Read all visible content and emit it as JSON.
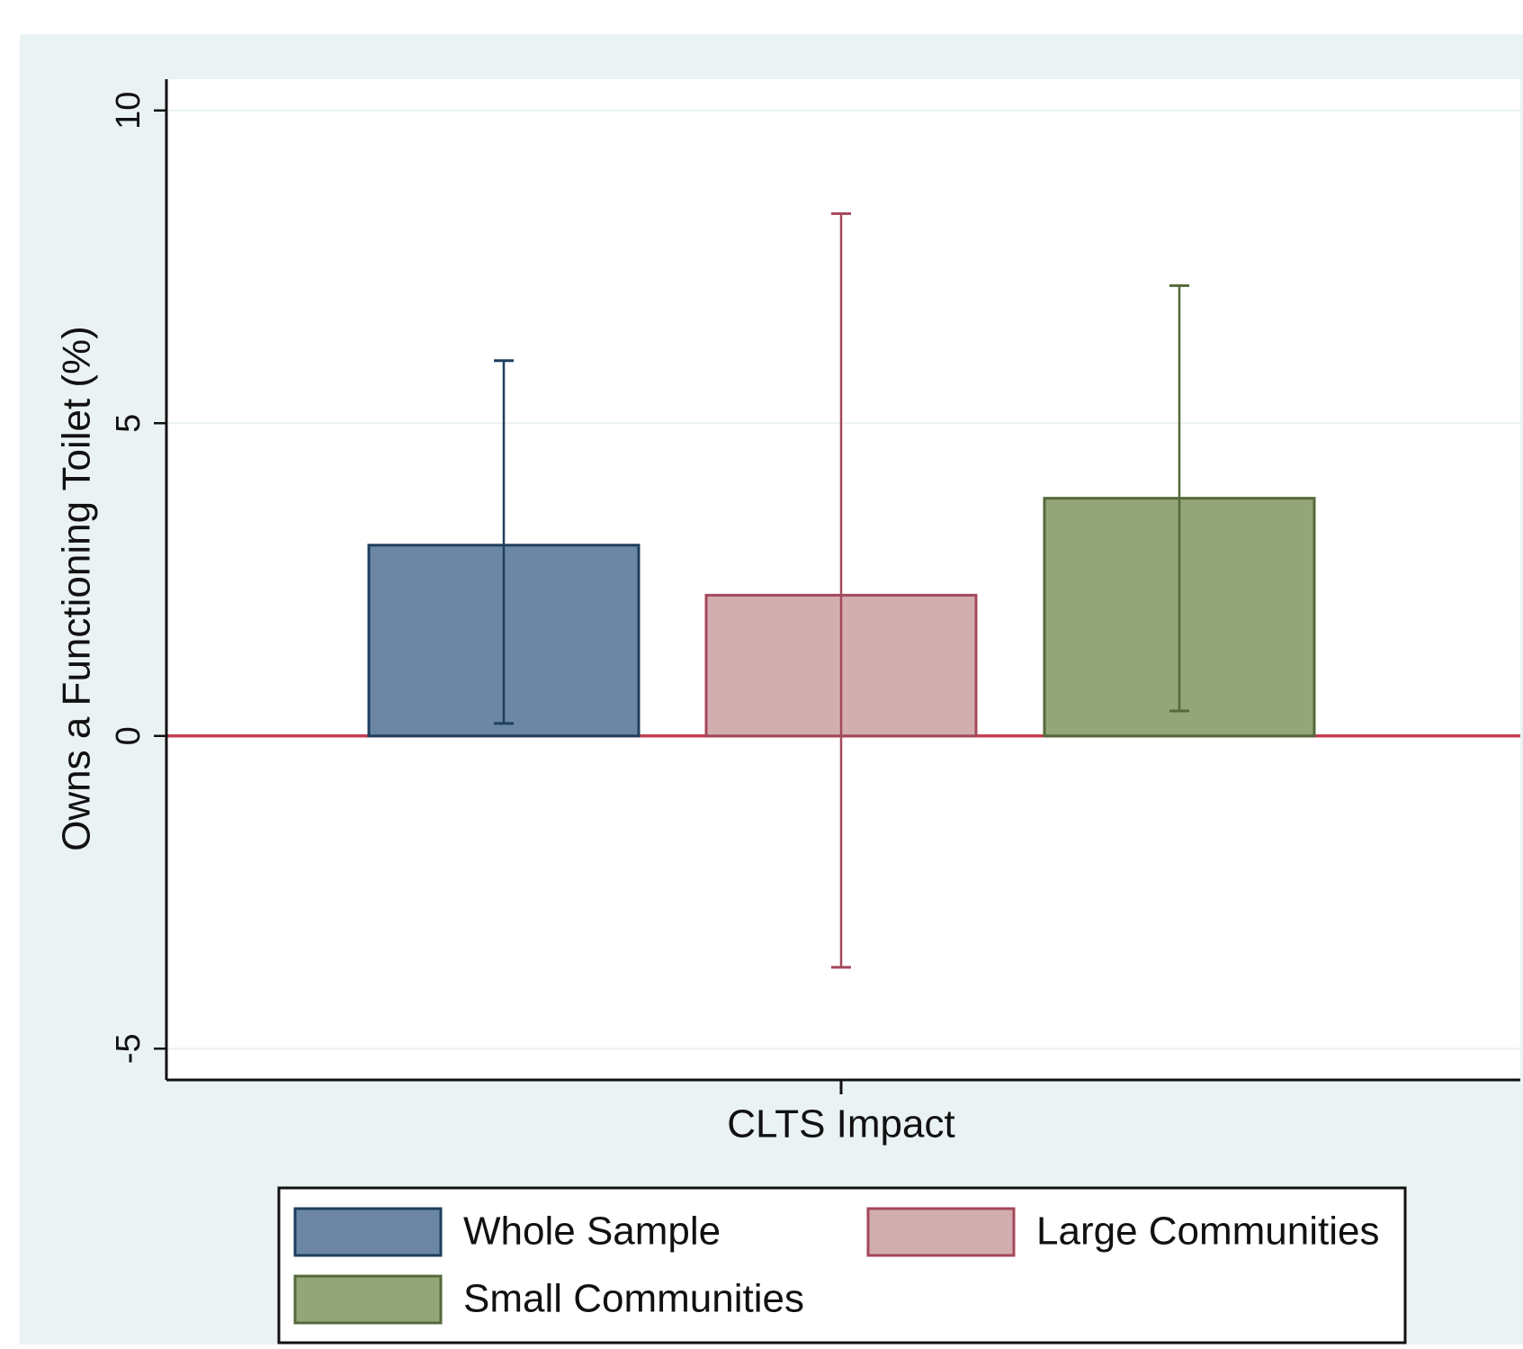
{
  "colors": {
    "outer_background": "#eaf2f3",
    "plot_background": "#ffffff",
    "gridline": "#eaf2f3",
    "zero_line": "#c33f55",
    "axis": "#111111"
  },
  "chart_data": {
    "type": "bar",
    "title": "",
    "xlabel": "CLTS Impact",
    "ylabel": "Owns a Functioning Toilet (%)",
    "ylim": [
      -5.5,
      10.5
    ],
    "yticks": [
      -5,
      0,
      5,
      10
    ],
    "grid": true,
    "legend_position": "bottom",
    "series": [
      {
        "name": "Whole Sample",
        "value": 3.05,
        "ci": [
          0.2,
          6.0
        ],
        "fill": "#6c87a4",
        "stroke": "#1e3f5f"
      },
      {
        "name": "Large Communities",
        "value": 2.25,
        "ci": [
          -3.7,
          8.35
        ],
        "fill": "#d2aeb0",
        "stroke": "#a4485b"
      },
      {
        "name": "Small Communities",
        "value": 3.8,
        "ci": [
          0.4,
          7.2
        ],
        "fill": "#94a679",
        "stroke": "#55693a"
      }
    ]
  }
}
